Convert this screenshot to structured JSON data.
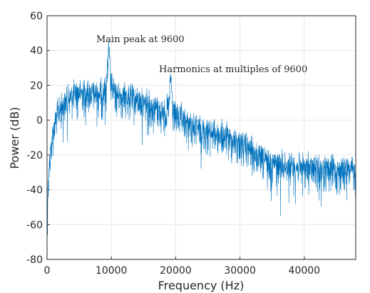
{
  "chart_data": {
    "type": "line",
    "xlabel": "Frequency (Hz)",
    "ylabel": "Power (dB)",
    "xlim": [
      0,
      48000
    ],
    "ylim": [
      -80,
      60
    ],
    "x_ticks": [
      0,
      10000,
      20000,
      30000,
      40000
    ],
    "y_ticks": [
      -80,
      -60,
      -40,
      -20,
      0,
      20,
      40,
      60
    ],
    "grid": true,
    "line_color": "#0072BD",
    "series": [
      {
        "x": [
          0,
          300,
          800,
          1500,
          2500,
          3500,
          4500,
          5500,
          6500,
          7500,
          8500,
          9000,
          9300,
          9600,
          9900,
          10500,
          11500,
          12500,
          13500,
          14500,
          15500,
          16500,
          17500,
          18500,
          19000,
          19200,
          19600,
          20500,
          21500,
          22500,
          23500,
          24500,
          25500,
          26500,
          27500,
          28500,
          29500,
          30500,
          31500,
          32500,
          33500,
          34500,
          35500,
          36500,
          37500,
          38500,
          39500,
          40500,
          41500,
          42500,
          43500,
          44500,
          45500,
          46500,
          47500,
          48000
        ],
        "y": [
          -50,
          -30,
          -10,
          2,
          8,
          12,
          15,
          15,
          15,
          14,
          15,
          16,
          22,
          41,
          20,
          14,
          13,
          12,
          11,
          10,
          9,
          7,
          5,
          3,
          8,
          25,
          3,
          0,
          -2,
          -4,
          -6,
          -7,
          -8,
          -9,
          -10,
          -12,
          -13,
          -15,
          -18,
          -21,
          -24,
          -25,
          -26,
          -27,
          -27,
          -28,
          -28,
          -28,
          -29,
          -29,
          -29,
          -30,
          -30,
          -30,
          -30,
          -30
        ]
      }
    ],
    "annotations": [
      {
        "text": "Main peak at 9600"
      },
      {
        "text": "Harmonics at multiples of 9600"
      }
    ]
  }
}
